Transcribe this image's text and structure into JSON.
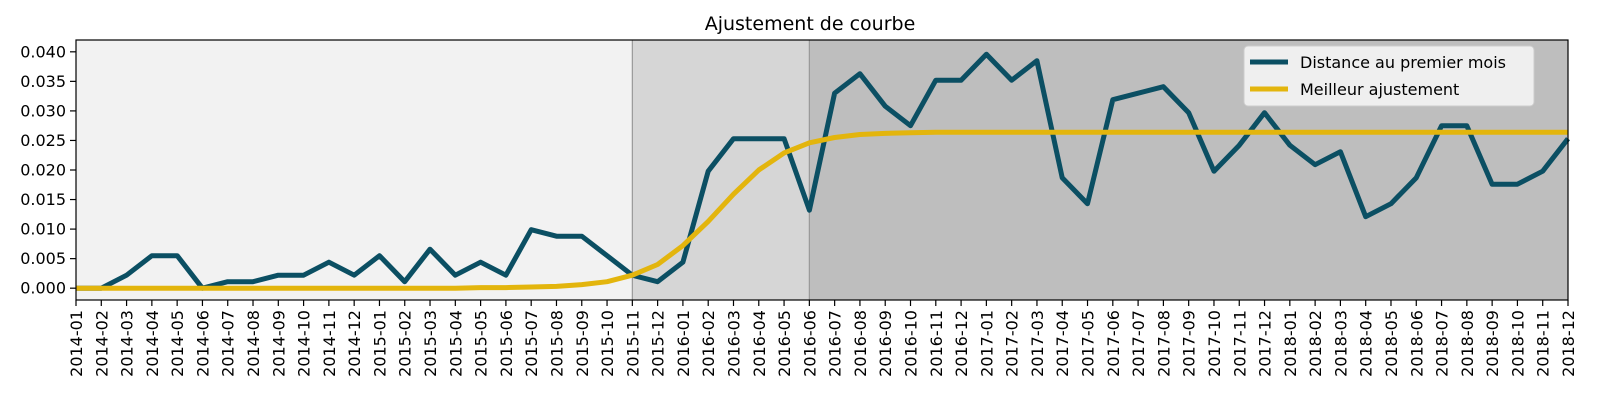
{
  "chart_data": {
    "type": "line",
    "title": "Ajustement de courbe",
    "xlabel": "",
    "ylabel": "",
    "x": [
      "2014-01",
      "2014-02",
      "2014-03",
      "2014-04",
      "2014-05",
      "2014-06",
      "2014-07",
      "2014-08",
      "2014-09",
      "2014-10",
      "2014-11",
      "2014-12",
      "2015-01",
      "2015-02",
      "2015-03",
      "2015-04",
      "2015-05",
      "2015-06",
      "2015-07",
      "2015-08",
      "2015-09",
      "2015-10",
      "2015-11",
      "2015-12",
      "2016-01",
      "2016-02",
      "2016-03",
      "2016-04",
      "2016-05",
      "2016-06",
      "2016-07",
      "2016-08",
      "2016-09",
      "2016-10",
      "2016-11",
      "2016-12",
      "2017-01",
      "2017-02",
      "2017-03",
      "2017-04",
      "2017-05",
      "2017-06",
      "2017-07",
      "2017-08",
      "2017-09",
      "2017-10",
      "2017-11",
      "2017-12",
      "2018-01",
      "2018-02",
      "2018-03",
      "2018-04",
      "2018-05",
      "2018-06",
      "2018-07",
      "2018-08",
      "2018-09",
      "2018-10",
      "2018-11",
      "2018-12"
    ],
    "ylim": [
      -0.002,
      0.042
    ],
    "yticks": [
      0.0,
      0.005,
      0.01,
      0.015,
      0.02,
      0.025,
      0.03,
      0.035,
      0.04
    ],
    "ytick_labels": [
      "0.000",
      "0.005",
      "0.010",
      "0.015",
      "0.020",
      "0.025",
      "0.030",
      "0.035",
      "0.040"
    ],
    "grid": false,
    "legend_position": "top-right",
    "shaded_regions": [
      {
        "start": "2014-01",
        "end": "2015-11",
        "color": "#f2f2f2"
      },
      {
        "start": "2015-11",
        "end": "2016-06",
        "color": "#d6d6d6"
      },
      {
        "start": "2016-06",
        "end": "2018-12",
        "color": "#bebebe"
      }
    ],
    "series": [
      {
        "name": "Distance au premier mois",
        "color": "#0b4f63",
        "values": [
          0.0,
          0.0,
          0.0022,
          0.0055,
          0.0055,
          0.0,
          0.0011,
          0.0011,
          0.0022,
          0.0022,
          0.0044,
          0.0022,
          0.0055,
          0.0011,
          0.0066,
          0.0022,
          0.0044,
          0.0022,
          0.0099,
          0.0088,
          0.0088,
          0.0055,
          0.0022,
          0.0011,
          0.0044,
          0.0198,
          0.0253,
          0.0253,
          0.0253,
          0.0132,
          0.033,
          0.0363,
          0.0308,
          0.0275,
          0.0352,
          0.0352,
          0.0396,
          0.0352,
          0.0385,
          0.0187,
          0.0143,
          0.0319,
          0.033,
          0.0341,
          0.0297,
          0.0198,
          0.0242,
          0.0297,
          0.0242,
          0.0209,
          0.0231,
          0.0121,
          0.0143,
          0.0187,
          0.0275,
          0.0275,
          0.0176,
          0.0176,
          0.0198,
          0.0253
        ]
      },
      {
        "name": "Meilleur ajustement",
        "color": "#e3b50d",
        "values": [
          0.0,
          0.0,
          0.0,
          0.0,
          0.0,
          0.0,
          0.0,
          0.0,
          0.0,
          0.0,
          0.0,
          0.0,
          0.0,
          0.0,
          0.0,
          0.0,
          0.0001,
          0.0001,
          0.0002,
          0.0003,
          0.0006,
          0.0011,
          0.0022,
          0.004,
          0.0072,
          0.0113,
          0.0159,
          0.02,
          0.0229,
          0.0246,
          0.0255,
          0.026,
          0.0262,
          0.0263,
          0.0264,
          0.0264,
          0.0264,
          0.0264,
          0.0264,
          0.0264,
          0.0264,
          0.0264,
          0.0264,
          0.0264,
          0.0264,
          0.0264,
          0.0264,
          0.0264,
          0.0264,
          0.0264,
          0.0264,
          0.0264,
          0.0264,
          0.0264,
          0.0264,
          0.0264,
          0.0264,
          0.0264,
          0.0264,
          0.0264
        ]
      }
    ]
  }
}
